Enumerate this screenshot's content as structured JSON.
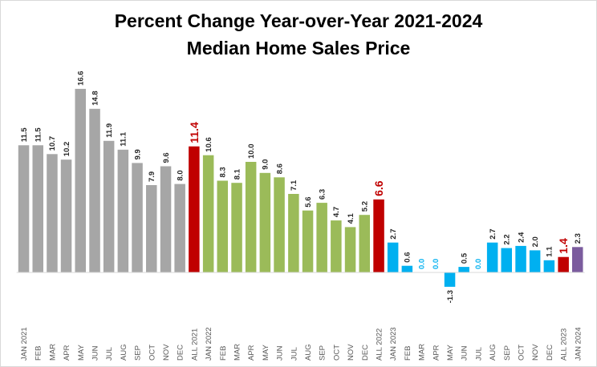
{
  "chart_data": {
    "type": "bar",
    "title": "Percent Change Year-over-Year 2021-2024",
    "subtitle": "Median Home Sales Price",
    "categories": [
      "JAN 2021",
      "FEB",
      "MAR",
      "APR",
      "MAY",
      "JUN",
      "JUL",
      "AUG",
      "SEP",
      "OCT",
      "NOV",
      "DEC",
      "ALL 2021",
      "JAN 2022",
      "FEB",
      "MAR",
      "APR",
      "MAY",
      "JUN",
      "JUL",
      "AUG",
      "SEP",
      "OCT",
      "NOV",
      "DEC",
      "ALL 2022",
      "JAN 2023",
      "FEB",
      "MAR",
      "APR",
      "MAY",
      "JUN",
      "JUL",
      "AUG",
      "SEP",
      "OCT",
      "NOV",
      "DEC",
      "ALL 2023",
      "JAN 2024"
    ],
    "values": [
      11.5,
      11.5,
      10.7,
      10.2,
      16.6,
      14.8,
      11.9,
      11.1,
      9.9,
      7.9,
      9.6,
      8.0,
      11.4,
      10.6,
      8.3,
      8.1,
      10.0,
      9.0,
      8.6,
      7.1,
      5.6,
      6.3,
      4.7,
      4.1,
      5.2,
      6.6,
      2.7,
      0.6,
      0.0,
      0.0,
      -1.3,
      0.5,
      0.0,
      2.7,
      2.2,
      2.4,
      2.0,
      1.1,
      1.4,
      2.3
    ],
    "value_labels": [
      "11.5",
      "11.5",
      "10.7",
      "10.2",
      "16.6",
      "14.8",
      "11.9",
      "11.1",
      "9.9",
      "7.9",
      "9.6",
      "8.0",
      "11.4",
      "10.6",
      "8.3",
      "8.1",
      "10.0",
      "9.0",
      "8.6",
      "7.1",
      "5.6",
      "6.3",
      "4.7",
      "4.1",
      "5.2",
      "6.6",
      "2.7",
      "0.6",
      "0.0",
      "0.0",
      "-1.3",
      "0.5",
      "0.0",
      "2.7",
      "2.2",
      "2.4",
      "2.0",
      "1.1",
      "1.4",
      "2.3"
    ],
    "bar_groups": [
      "2021",
      "2021",
      "2021",
      "2021",
      "2021",
      "2021",
      "2021",
      "2021",
      "2021",
      "2021",
      "2021",
      "2021",
      "annual",
      "2022",
      "2022",
      "2022",
      "2022",
      "2022",
      "2022",
      "2022",
      "2022",
      "2022",
      "2022",
      "2022",
      "2022",
      "annual",
      "2023",
      "2023",
      "2023",
      "2023",
      "2023",
      "2023",
      "2023",
      "2023",
      "2023",
      "2023",
      "2023",
      "2023",
      "annual",
      "2024"
    ],
    "colors": {
      "2021": "#a6a6a6",
      "2022": "#9bbb59",
      "2023": "#00b0f0",
      "annual": "#c00000",
      "2024": "#7b5c9e"
    },
    "label_colors": {
      "2021": "#262626",
      "2022": "#262626",
      "2023": "#262626",
      "annual": "#c00000",
      "2024": "#262626",
      "zero": "#00b0f0"
    },
    "ylim": [
      -3,
      18
    ],
    "grid": false,
    "legend": "none"
  }
}
